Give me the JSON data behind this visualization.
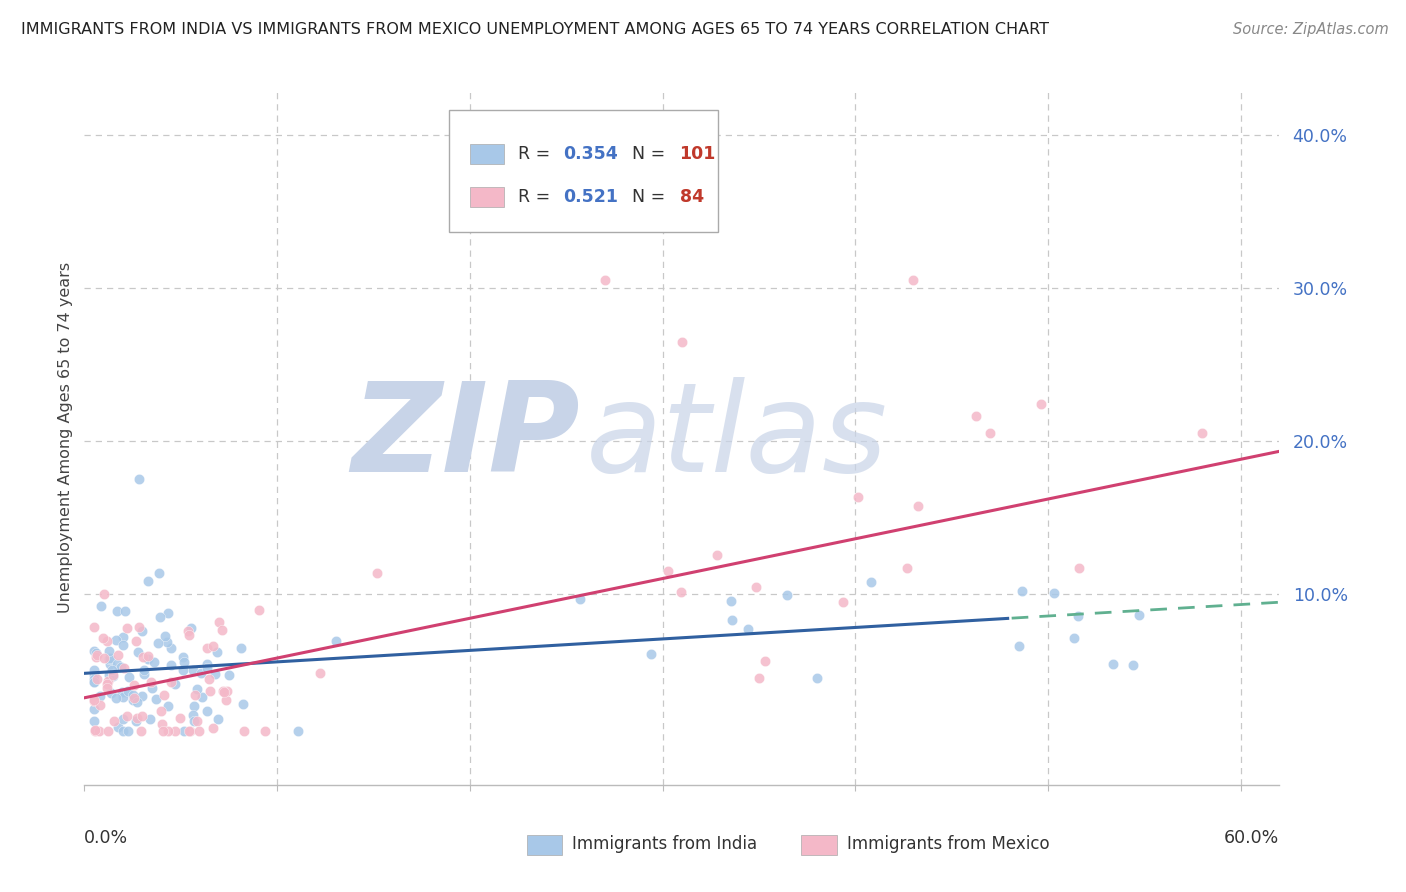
{
  "title": "IMMIGRANTS FROM INDIA VS IMMIGRANTS FROM MEXICO UNEMPLOYMENT AMONG AGES 65 TO 74 YEARS CORRELATION CHART",
  "source": "Source: ZipAtlas.com",
  "ylabel": "Unemployment Among Ages 65 to 74 years",
  "xlim": [
    0.0,
    0.62
  ],
  "ylim": [
    -0.025,
    0.43
  ],
  "ytick_vals": [
    0.1,
    0.2,
    0.3,
    0.4
  ],
  "ytick_labels": [
    "10.0%",
    "20.0%",
    "30.0%",
    "40.0%"
  ],
  "india_color": "#a8c8e8",
  "mexico_color": "#f4b8c8",
  "india_trend_color": "#3060a0",
  "mexico_trend_color": "#d04070",
  "india_dash_color": "#60b090",
  "watermark_zip_color": "#c8d4e8",
  "watermark_atlas_color": "#c8d4e8",
  "background_color": "#ffffff",
  "grid_color": "#c8c8c8",
  "tick_color": "#4472c4",
  "legend_text_color": "#333333",
  "legend_r_color": "#4472c4",
  "legend_n_color": "#c0392b",
  "title_color": "#222222",
  "source_color": "#888888",
  "india_R": "0.354",
  "india_N": "101",
  "mexico_R": "0.521",
  "mexico_N": "84",
  "india_trend_intercept": 0.048,
  "india_trend_slope": 0.075,
  "mexico_trend_intercept": 0.032,
  "mexico_trend_slope": 0.26,
  "india_cutoff": 0.48
}
